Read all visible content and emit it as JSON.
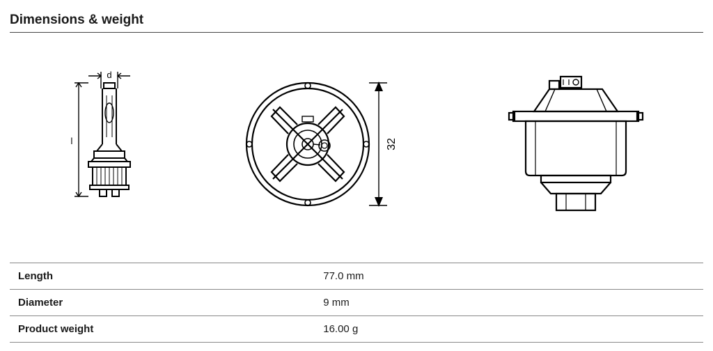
{
  "section": {
    "title": "Dimensions & weight"
  },
  "diagram": {
    "dim_d_label": "d",
    "dim_l_label": "l",
    "dim_32_label": "32",
    "stroke": "#000000",
    "stroke_width": 2.2,
    "stroke_thin": 1
  },
  "spec_table": {
    "rows": [
      {
        "label": "Length",
        "value": "77.0 mm"
      },
      {
        "label": "Diameter",
        "value": "9 mm"
      },
      {
        "label": "Product weight",
        "value": "16.00 g"
      }
    ]
  }
}
